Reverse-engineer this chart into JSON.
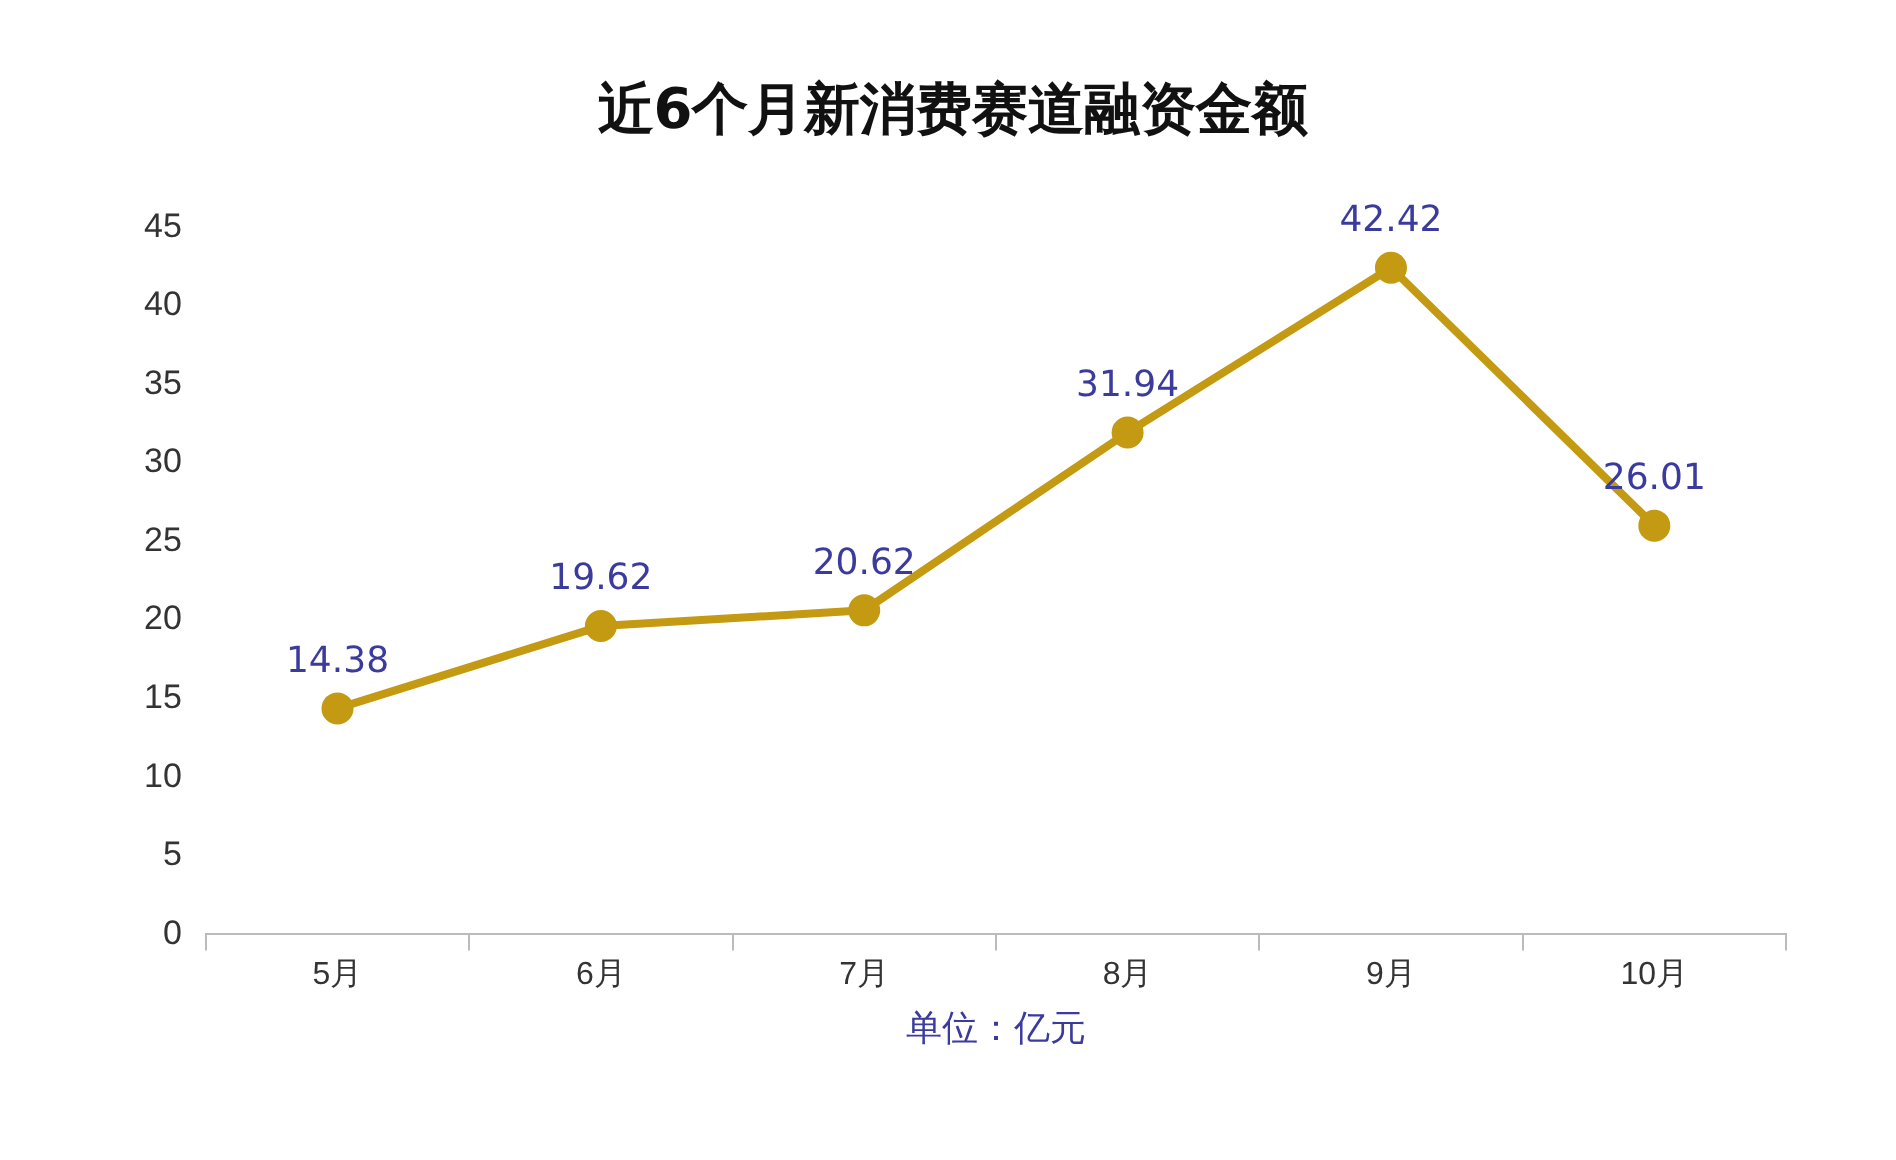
{
  "chart_data": {
    "type": "line",
    "title": "近6个月新消费赛道融资金额",
    "xlabel": "单位：亿元",
    "categories": [
      "5月",
      "6月",
      "7月",
      "8月",
      "9月",
      "10月"
    ],
    "series": [
      {
        "color": "#c39a12",
        "values": [
          14.38,
          19.62,
          20.62,
          31.94,
          42.42,
          26.01
        ]
      }
    ],
    "ylim": [
      0,
      45
    ],
    "yticks": [
      0,
      5,
      10,
      15,
      20,
      25,
      30,
      35,
      40,
      45
    ],
    "grid": false,
    "legend": false,
    "marker": "circle",
    "line_style": "solid",
    "data_labels": true
  }
}
